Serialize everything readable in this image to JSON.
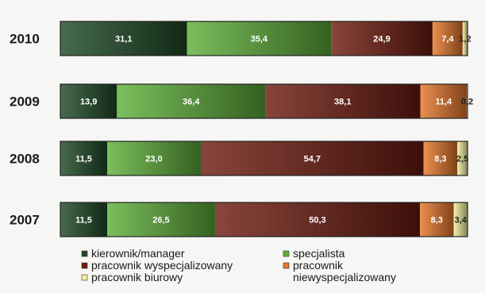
{
  "chart_data": {
    "type": "bar",
    "orientation": "horizontal",
    "stacked": true,
    "normalized_percent": true,
    "categories": [
      "2010",
      "2009",
      "2008",
      "2007"
    ],
    "value_labels": [
      [
        "31,1",
        "35,4",
        "24,9",
        "7,4",
        "1,2"
      ],
      [
        "13,9",
        "36,4",
        "38,1",
        "11,4",
        "0,2"
      ],
      [
        "11,5",
        "23,0",
        "54,7",
        "8,3",
        "2,5"
      ],
      [
        "11,5",
        "26,5",
        "50,3",
        "8,3",
        "3,4"
      ]
    ],
    "series": [
      {
        "name": "kierownik/manager",
        "values": [
          31.1,
          13.9,
          11.5,
          11.5
        ],
        "color": "#1f4a27"
      },
      {
        "name": "specjalista",
        "values": [
          35.4,
          36.4,
          23.0,
          26.5
        ],
        "color": "#5fb03a"
      },
      {
        "name": "pracownik wyspecjalizowany",
        "values": [
          24.9,
          38.1,
          54.7,
          50.3
        ],
        "color": "#6e1c10"
      },
      {
        "name": "pracownik niewyspecjalizowany",
        "values": [
          7.4,
          11.4,
          8.3,
          8.3
        ],
        "color": "#e6782b"
      },
      {
        "name": "pracownik biurowy",
        "values": [
          1.2,
          0.2,
          2.5,
          3.4
        ],
        "color": "#f3ee9e"
      }
    ],
    "xlim": [
      0,
      100
    ],
    "grid": false,
    "legend_position": "bottom"
  }
}
